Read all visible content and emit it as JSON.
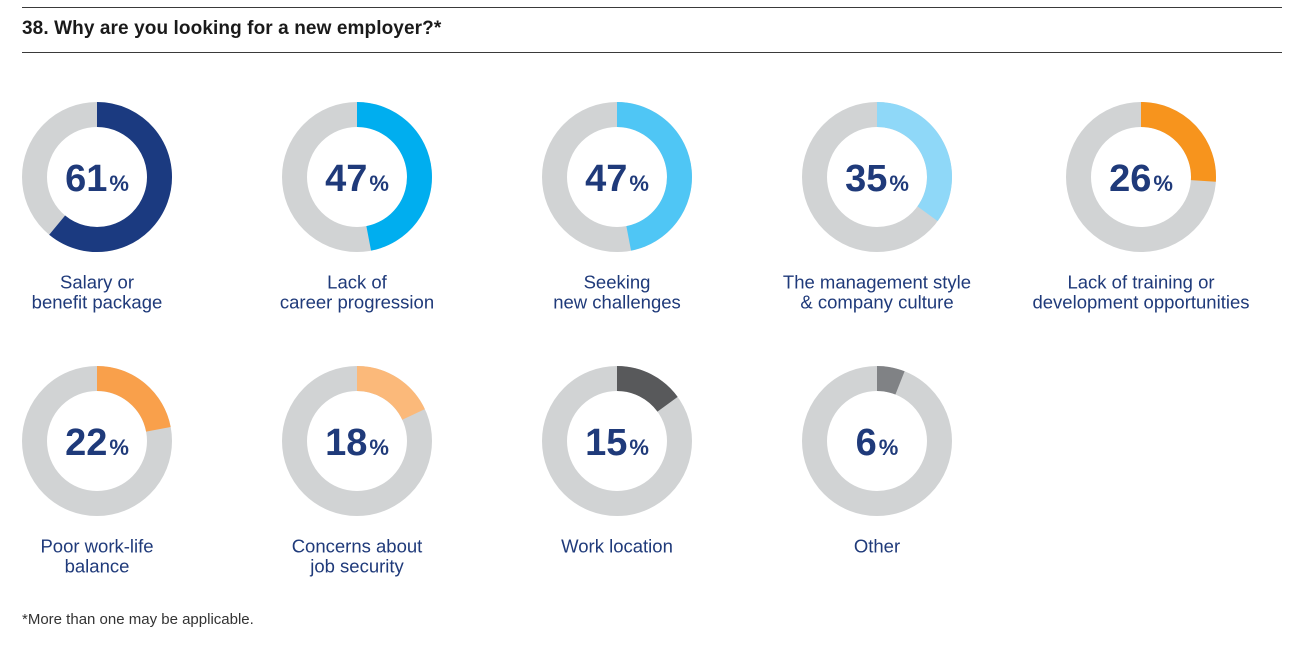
{
  "title": "38. Why are you looking for a new employer?*",
  "footnote": "*More than one may be applicable.",
  "colors": {
    "track": "#d1d3d4",
    "value_text": "#1f3a7a",
    "label_text": "#1f3a7a"
  },
  "chart_data": {
    "type": "pie",
    "variant": "donut",
    "title": "38. Why are you looking for a new employer?*",
    "unit": "%",
    "items": [
      {
        "value": 61,
        "label": "Salary or benefit package",
        "label_lines": [
          "Salary or",
          "benefit package"
        ],
        "color": "#1b3a80"
      },
      {
        "value": 47,
        "label": "Lack of career progression",
        "label_lines": [
          "Lack of",
          "career progression"
        ],
        "color": "#00aeef"
      },
      {
        "value": 47,
        "label": "Seeking new challenges",
        "label_lines": [
          "Seeking",
          "new challenges"
        ],
        "color": "#4fc6f5"
      },
      {
        "value": 35,
        "label": "The management style & company culture",
        "label_lines": [
          "The management style",
          "& company culture"
        ],
        "color": "#8fd8f8"
      },
      {
        "value": 26,
        "label": "Lack of training or development opportunities",
        "label_lines": [
          "Lack of training or",
          "development opportunities"
        ],
        "color": "#f7941d"
      },
      {
        "value": 22,
        "label": "Poor work-life balance",
        "label_lines": [
          "Poor work-life",
          "balance"
        ],
        "color": "#f9a04b"
      },
      {
        "value": 18,
        "label": "Concerns about job security",
        "label_lines": [
          "Concerns about",
          "job security"
        ],
        "color": "#fbb97a"
      },
      {
        "value": 15,
        "label": "Work location",
        "label_lines": [
          "Work location"
        ],
        "color": "#58595b"
      },
      {
        "value": 6,
        "label": "Other",
        "label_lines": [
          "Other"
        ],
        "color": "#808285"
      }
    ]
  }
}
